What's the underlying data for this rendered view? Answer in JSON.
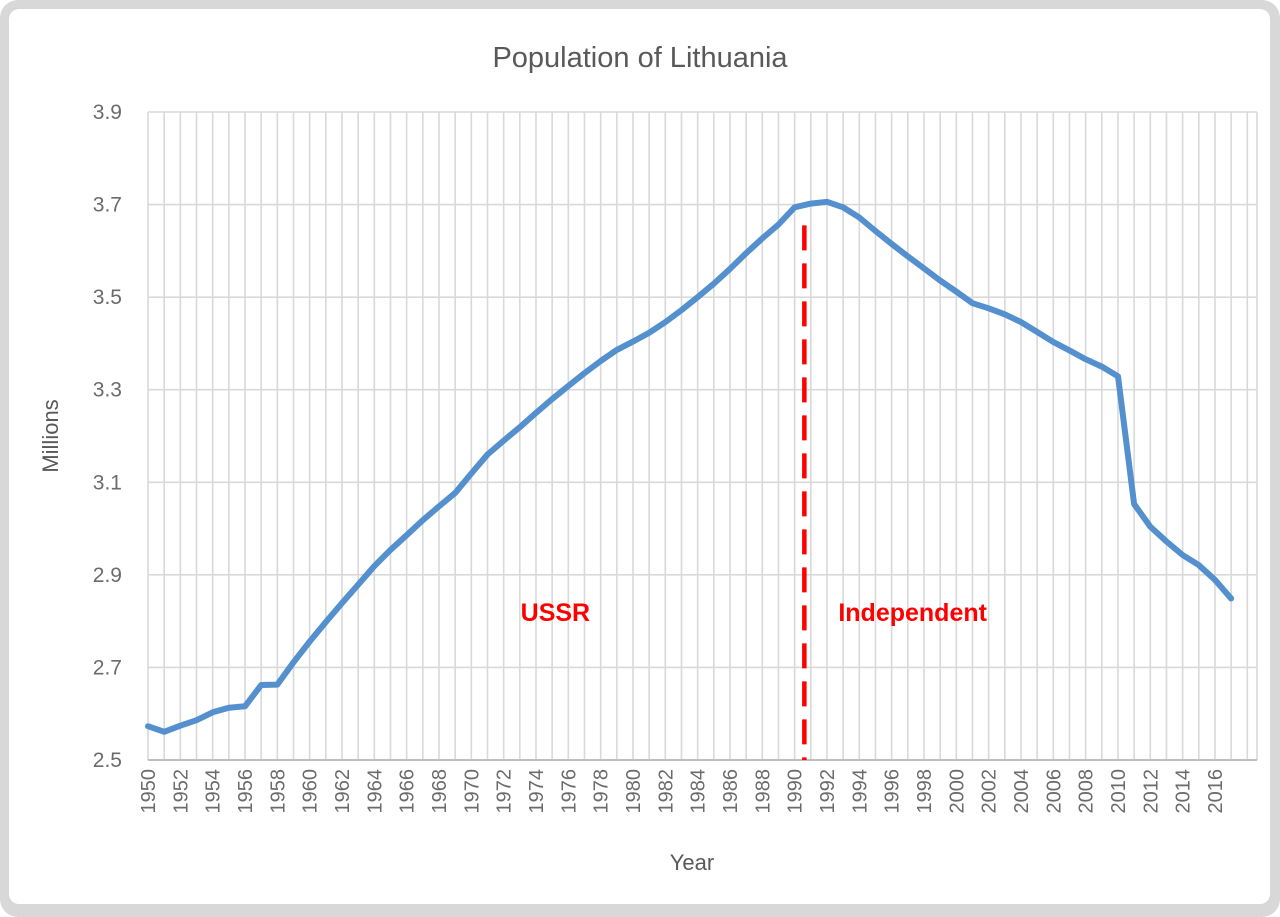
{
  "frame": {
    "outer_background": "#d8d8d8",
    "card_background": "#ffffff"
  },
  "chart_data": {
    "type": "line",
    "title": "Population of Lithuania",
    "xlabel": "Year",
    "ylabel": "Millions",
    "grid": true,
    "legend": "none",
    "colors": {
      "line": "#5490CE",
      "grid": "#d9d9d9",
      "axis": "#bfbfbf",
      "text": "#595959",
      "divider": "#ff0000",
      "annotation": "#ff0000"
    },
    "ylim": [
      2.5,
      3.9
    ],
    "y_ticks": [
      2.5,
      2.7,
      2.9,
      3.1,
      3.3,
      3.5,
      3.7,
      3.9
    ],
    "x_domain": [
      1950,
      2018.6
    ],
    "x_gridline_years": {
      "start": 1950,
      "end": 2018,
      "step": 1
    },
    "x_tick_labels": [
      1950,
      1952,
      1954,
      1956,
      1958,
      1960,
      1962,
      1964,
      1966,
      1968,
      1970,
      1972,
      1974,
      1976,
      1978,
      1980,
      1982,
      1984,
      1986,
      1988,
      1990,
      1992,
      1994,
      1996,
      1998,
      2000,
      2002,
      2004,
      2006,
      2008,
      2010,
      2012,
      2014,
      2016
    ],
    "x": [
      1950,
      1951,
      1952,
      1953,
      1954,
      1955,
      1956,
      1957,
      1958,
      1959,
      1960,
      1961,
      1962,
      1963,
      1964,
      1965,
      1966,
      1967,
      1968,
      1969,
      1970,
      1971,
      1972,
      1973,
      1974,
      1975,
      1976,
      1977,
      1978,
      1979,
      1980,
      1981,
      1982,
      1983,
      1984,
      1985,
      1986,
      1987,
      1988,
      1989,
      1990,
      1991,
      1992,
      1993,
      1994,
      1995,
      1996,
      1997,
      1998,
      1999,
      2000,
      2001,
      2002,
      2003,
      2004,
      2005,
      2006,
      2007,
      2008,
      2009,
      2010,
      2011,
      2012,
      2013,
      2014,
      2015,
      2016,
      2017
    ],
    "values": [
      2.573,
      2.561,
      2.574,
      2.586,
      2.603,
      2.613,
      2.616,
      2.662,
      2.663,
      2.711,
      2.756,
      2.798,
      2.839,
      2.879,
      2.919,
      2.954,
      2.986,
      3.018,
      3.048,
      3.077,
      3.119,
      3.16,
      3.19,
      3.219,
      3.25,
      3.28,
      3.308,
      3.336,
      3.362,
      3.386,
      3.404,
      3.423,
      3.446,
      3.472,
      3.5,
      3.529,
      3.561,
      3.595,
      3.627,
      3.657,
      3.694,
      3.702,
      3.706,
      3.694,
      3.672,
      3.643,
      3.615,
      3.588,
      3.562,
      3.536,
      3.512,
      3.487,
      3.476,
      3.463,
      3.446,
      3.425,
      3.403,
      3.385,
      3.366,
      3.35,
      3.329,
      3.053,
      3.004,
      2.972,
      2.943,
      2.921,
      2.889,
      2.849
    ],
    "divider": {
      "x_year": 1990.6,
      "y_top_value": 3.655,
      "y_bottom_value": 2.5,
      "dash": [
        25,
        13
      ],
      "width": 4.5
    },
    "annotations": [
      {
        "text": "USSR",
        "x_year": 1975.2,
        "y_value": 2.8
      },
      {
        "text": "Independent",
        "x_year": 1997.3,
        "y_value": 2.8
      }
    ]
  }
}
